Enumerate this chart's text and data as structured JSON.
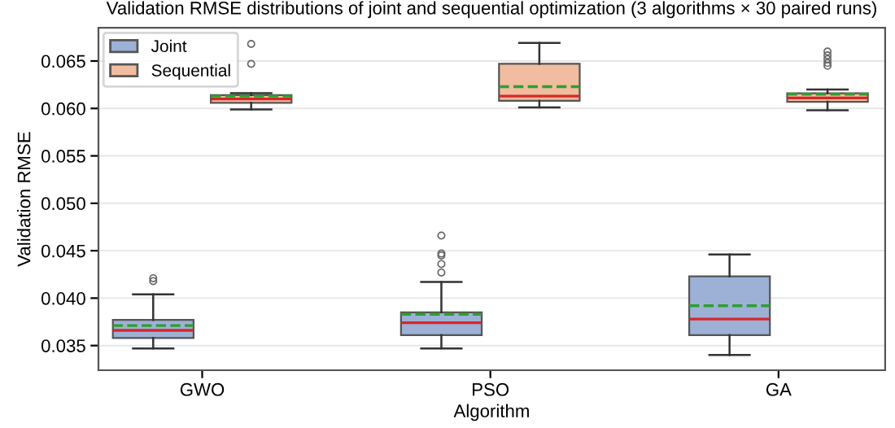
{
  "chart_data": {
    "type": "box",
    "title": "Validation RMSE distributions of joint and sequential optimization (3 algorithms × 30 paired runs)",
    "xlabel": "Algorithm",
    "ylabel": "Validation RMSE",
    "categories": [
      "GWO",
      "PSO",
      "GA"
    ],
    "series": [
      {
        "name": "Joint",
        "color": "#9db1d6",
        "boxes": [
          {
            "low": 0.0347,
            "q1": 0.0358,
            "median": 0.0366,
            "q3": 0.0377,
            "high": 0.0404,
            "mean": 0.0371,
            "outliers": [
              0.0418,
              0.0421
            ]
          },
          {
            "low": 0.0347,
            "q1": 0.0361,
            "median": 0.0374,
            "q3": 0.0385,
            "high": 0.0417,
            "mean": 0.0383,
            "outliers": [
              0.0427,
              0.0436,
              0.0445,
              0.0447,
              0.0466
            ]
          },
          {
            "low": 0.034,
            "q1": 0.0361,
            "median": 0.0378,
            "q3": 0.0423,
            "high": 0.0446,
            "mean": 0.0392
          }
        ]
      },
      {
        "name": "Sequential",
        "color": "#f1bc9f",
        "boxes": [
          {
            "low": 0.0599,
            "q1": 0.0606,
            "median": 0.061,
            "q3": 0.0614,
            "high": 0.0616,
            "mean": 0.0613,
            "outliers": [
              0.0647,
              0.0668
            ]
          },
          {
            "low": 0.0601,
            "q1": 0.0608,
            "median": 0.0613,
            "q3": 0.0647,
            "high": 0.0669,
            "mean": 0.0623
          },
          {
            "low": 0.0598,
            "q1": 0.0607,
            "median": 0.0611,
            "q3": 0.0616,
            "high": 0.062,
            "mean": 0.0615,
            "outliers": [
              0.0645,
              0.0648,
              0.0652,
              0.0656,
              0.066
            ]
          }
        ]
      }
    ],
    "ylim": [
      0.0324,
      0.0685
    ],
    "yticks": [
      {
        "value": 0.035,
        "label": "0.035"
      },
      {
        "value": 0.04,
        "label": "0.040"
      },
      {
        "value": 0.045,
        "label": "0.045"
      },
      {
        "value": 0.05,
        "label": "0.050"
      },
      {
        "value": 0.055,
        "label": "0.055"
      },
      {
        "value": 0.06,
        "label": "0.060"
      },
      {
        "value": 0.065,
        "label": "0.065"
      }
    ],
    "grid": "y",
    "legend": "top left"
  }
}
